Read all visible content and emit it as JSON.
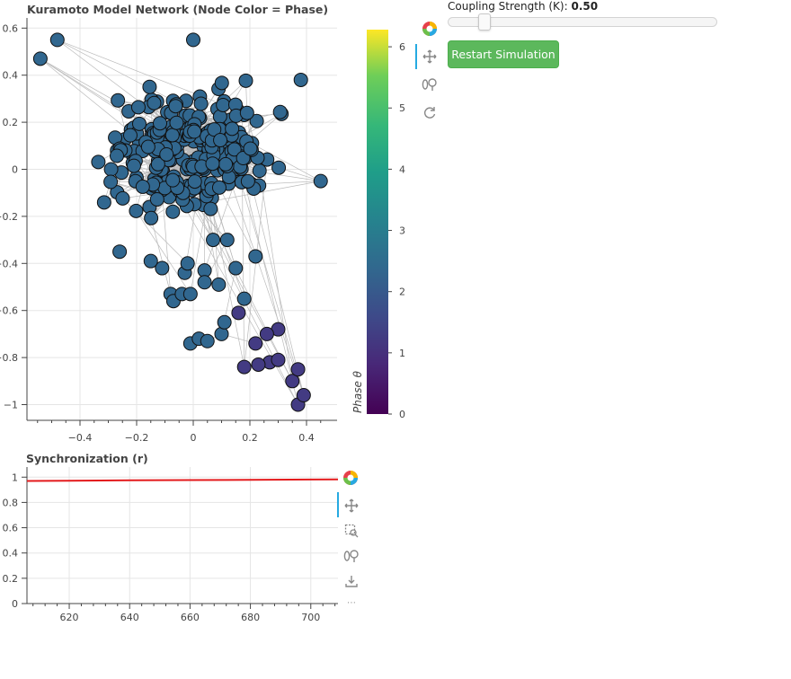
{
  "network_plot": {
    "title": "Kuramoto Model Network (Node Color = Phase)",
    "x_ticks": [
      "−0.4",
      "−0.2",
      "0",
      "0.2",
      "0.4"
    ],
    "y_ticks": [
      "0.6",
      "0.4",
      "0.2",
      "0",
      "−0.2",
      "−0.4",
      "−0.6",
      "−0.8",
      "−1"
    ],
    "colorbar_ticks": [
      "6",
      "5",
      "4",
      "3",
      "2",
      "1",
      "0"
    ],
    "colorbar_label": "Phase θ",
    "node_color": "#31678f",
    "low_node_color": "#433b83",
    "edge_color": "#bbbbbb"
  },
  "sync_plot": {
    "title": "Synchronization (r)",
    "line_color": "#e31a1c"
  },
  "controls": {
    "slider_label": "Coupling Strength (K):",
    "slider_value": "0.50",
    "slider_fraction": 0.05,
    "restart_label": "Restart Simulation"
  },
  "toolbar_icons": [
    "bokeh-logo-icon",
    "pan-icon",
    "wheel-zoom-icon",
    "reset-icon",
    "box-zoom-icon",
    "save-icon",
    "more-icon"
  ],
  "chart_data": [
    {
      "type": "scatter",
      "title": "Kuramoto Model Network (Node Color = Phase)",
      "xlim": [
        -0.58,
        0.5
      ],
      "ylim": [
        -1.05,
        0.63
      ],
      "color_range": [
        0,
        6.28
      ],
      "colorbar_label": "Phase θ",
      "nodes_sample": [
        {
          "x": -0.48,
          "y": 0.55
        },
        {
          "x": -0.54,
          "y": 0.47
        },
        {
          "x": 0.0,
          "y": 0.55
        },
        {
          "x": 0.45,
          "y": -0.05
        },
        {
          "x": 0.38,
          "y": 0.38
        },
        {
          "x": -0.26,
          "y": -0.35
        },
        {
          "x": 0.15,
          "y": -0.42
        },
        {
          "x": 0.18,
          "y": -0.84
        },
        {
          "x": 0.37,
          "y": -1.0
        },
        {
          "x": 0.39,
          "y": -0.96
        },
        {
          "x": 0.35,
          "y": -0.9
        },
        {
          "x": 0.37,
          "y": -0.85
        },
        {
          "x": 0.3,
          "y": -0.68
        },
        {
          "x": 0.18,
          "y": -0.55
        },
        {
          "x": 0.16,
          "y": -0.61
        }
      ]
    },
    {
      "type": "line",
      "title": "Synchronization (r)",
      "x": [
        606,
        620,
        640,
        660,
        680,
        700,
        709
      ],
      "y": [
        0.97,
        0.972,
        0.975,
        0.977,
        0.979,
        0.981,
        0.982
      ],
      "xlim": [
        606,
        709
      ],
      "ylim": [
        0,
        1.08
      ],
      "x_ticks": [
        "620",
        "640",
        "660",
        "680",
        "700"
      ],
      "y_ticks": [
        "0",
        "0.2",
        "0.4",
        "0.6",
        "0.8",
        "1"
      ]
    }
  ]
}
